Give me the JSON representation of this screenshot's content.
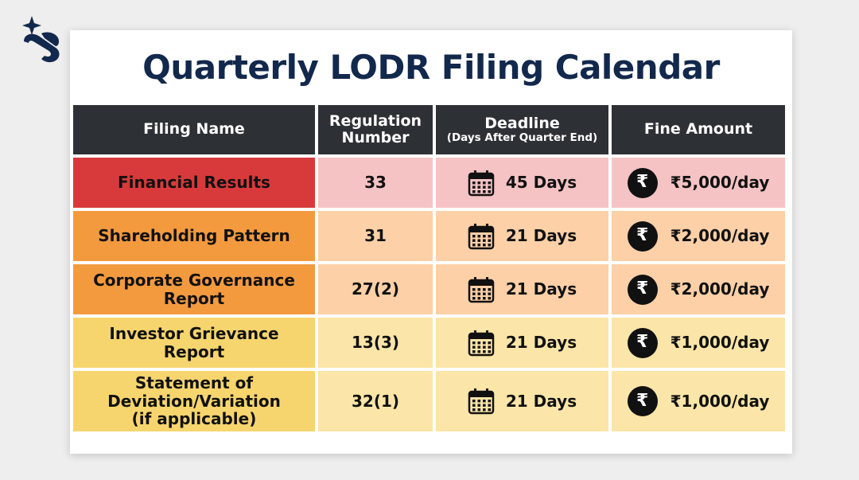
{
  "title": "Quarterly LODR Filing Calendar",
  "colors": {
    "title": "#12284c",
    "header_bg": "#2d3035",
    "red": "#d83a3c",
    "red_light": "#f5c3c4",
    "orange": "#f39a3f",
    "orange_light": "#fdd0a7",
    "yellow": "#f7d56e",
    "yellow_light": "#fbe5a8",
    "logo": "#12284c"
  },
  "icons": {
    "logo": "brand-sparkle-logo",
    "deadline": "calendar-icon",
    "fine": "rupee-icon"
  },
  "table": {
    "headers": {
      "filing_name": "Filing Name",
      "regulation_line1": "Regulation",
      "regulation_line2": "Number",
      "deadline": "Deadline",
      "deadline_sub": "(Days After Quarter End)",
      "fine": "Fine Amount"
    },
    "rows": [
      {
        "name_lines": [
          "Financial Results"
        ],
        "regulation": "33",
        "deadline": "45 Days",
        "fine": "₹5,000/day"
      },
      {
        "name_lines": [
          "Shareholding Pattern"
        ],
        "regulation": "31",
        "deadline": "21 Days",
        "fine": "₹2,000/day"
      },
      {
        "name_lines": [
          "Corporate Governance",
          "Report"
        ],
        "regulation": "27(2)",
        "deadline": "21 Days",
        "fine": "₹2,000/day"
      },
      {
        "name_lines": [
          "Investor Grievance Report"
        ],
        "regulation": "13(3)",
        "deadline": "21 Days",
        "fine": "₹1,000/day"
      },
      {
        "name_lines": [
          "Statement of",
          "Deviation/Variation",
          "(if applicable)"
        ],
        "regulation": "32(1)",
        "deadline": "21 Days",
        "fine": "₹1,000/day"
      }
    ],
    "rupee_symbol": "₹"
  }
}
